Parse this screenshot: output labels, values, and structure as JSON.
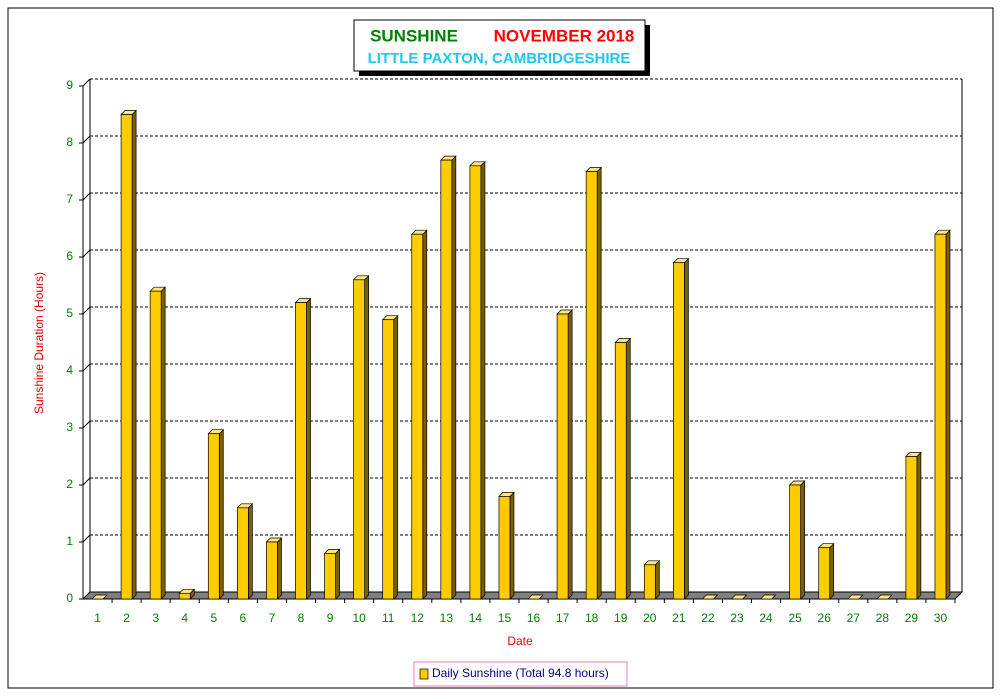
{
  "chart_data": {
    "type": "bar3d",
    "title": "SUNSHINE",
    "period": "NOVEMBER 2018",
    "subtitle": "LITTLE PAXTON, CAMBRIDGESHIRE",
    "x_label": "Date",
    "y_label": "Sunshine Duration (Hours)",
    "categories": [
      "1",
      "2",
      "3",
      "4",
      "5",
      "6",
      "7",
      "8",
      "9",
      "10",
      "11",
      "12",
      "13",
      "14",
      "15",
      "16",
      "17",
      "18",
      "19",
      "20",
      "21",
      "22",
      "23",
      "24",
      "25",
      "26",
      "27",
      "28",
      "29",
      "30"
    ],
    "series": [
      {
        "name": "Daily Sunshine (Total 94.8 hours)",
        "color": "#ffcc00",
        "values": [
          0,
          8.5,
          5.4,
          0.1,
          2.9,
          1.6,
          1.0,
          5.2,
          0.8,
          5.6,
          4.9,
          6.4,
          7.7,
          7.6,
          1.8,
          0,
          5.0,
          7.5,
          4.5,
          0.6,
          5.9,
          0,
          0,
          0,
          2.0,
          0.9,
          0,
          0,
          2.5,
          6.4
        ]
      }
    ],
    "ylim": [
      0,
      9
    ],
    "yticks": [
      0,
      1,
      2,
      3,
      4,
      5,
      6,
      7,
      8,
      9
    ],
    "grid": true
  }
}
